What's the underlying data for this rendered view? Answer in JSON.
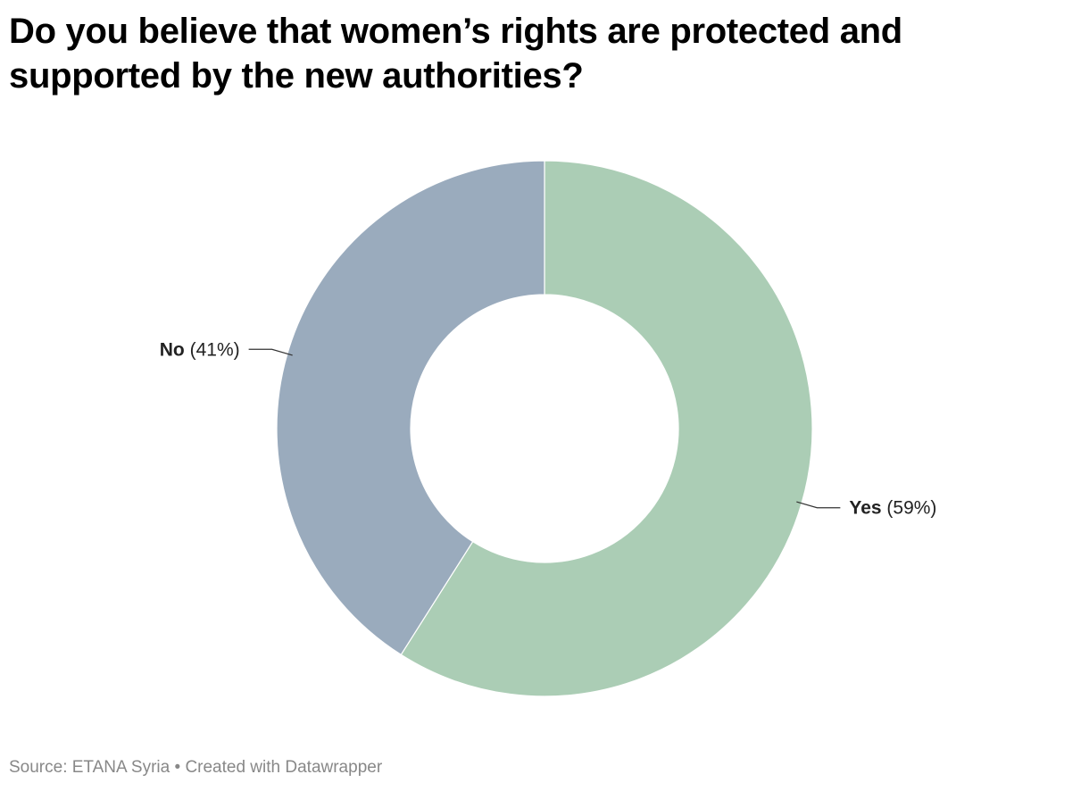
{
  "chart_data": {
    "type": "pie",
    "variant": "donut",
    "title": "Do you believe that women’s rights are protected and supported by the new authorities?",
    "slices": [
      {
        "label": "Yes",
        "value": 59,
        "value_label": "(59%)",
        "color": "#abcdb5"
      },
      {
        "label": "No",
        "value": 41,
        "value_label": "(41%)",
        "color": "#9aabbd"
      }
    ]
  },
  "footer": {
    "source_text": "Source: ETANA Syria",
    "separator": "•",
    "credit_text": "Created with Datawrapper"
  }
}
